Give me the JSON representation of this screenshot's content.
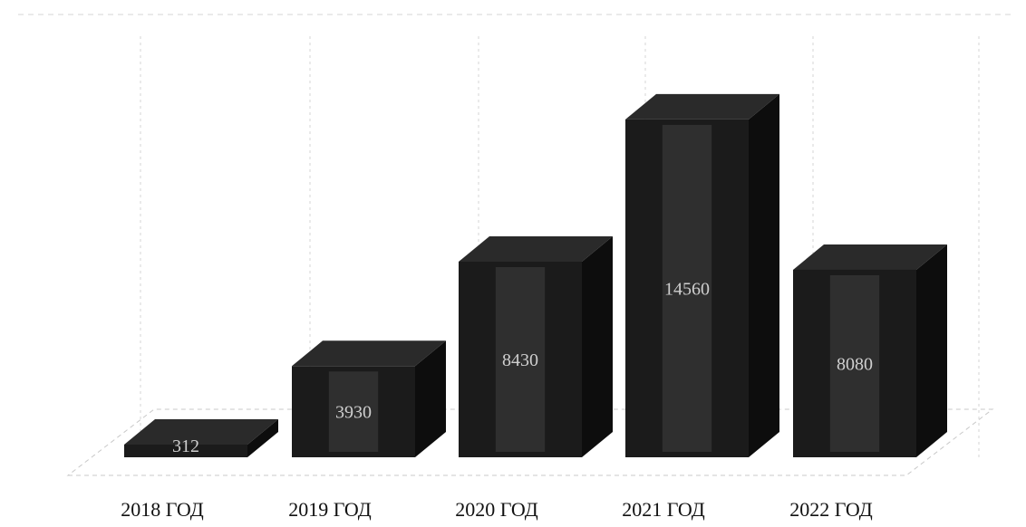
{
  "chart_data": {
    "type": "bar",
    "categories": [
      "2018 ГОД",
      "2019 ГОД",
      "2020 ГОД",
      "2021 ГОД",
      "2022 ГОД"
    ],
    "values": [
      312,
      3930,
      8430,
      14560,
      8080
    ],
    "value_labels": [
      "312",
      "3930",
      "8430",
      "14560",
      "8080"
    ],
    "ylim": [
      0,
      16000
    ],
    "grid": true,
    "legend": "none",
    "colors": {
      "bar_front": "#1b1b1b",
      "bar_side": "#0d0d0d",
      "bar_top": "#2a2a2a",
      "bar_highlight": "#6b6b6b",
      "grid": "#d6d6d6",
      "floor": "#c8c8c8"
    }
  }
}
